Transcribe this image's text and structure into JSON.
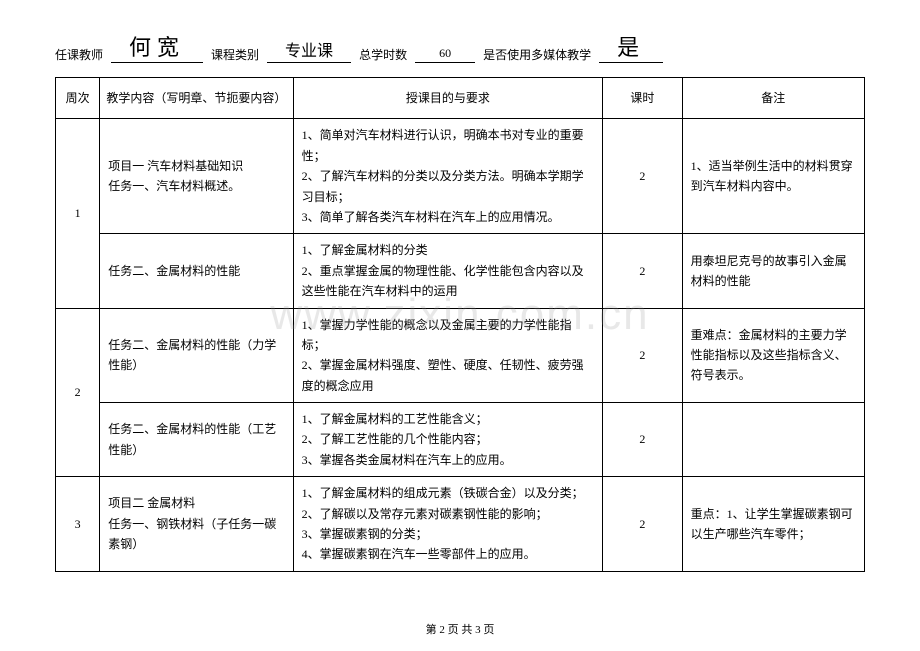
{
  "header": {
    "labels": {
      "teacher": "任课教师",
      "courseType": "课程类别",
      "totalHours": "总学时数",
      "multimedia": "是否使用多媒体教学"
    },
    "values": {
      "teacher": "何宽",
      "courseType": "专业课",
      "totalHours": "60",
      "multimedia": "是"
    }
  },
  "columns": {
    "week": "周次",
    "content": "教学内容（写明章、节扼要内容）",
    "goal": "授课目的与要求",
    "hours": "课时",
    "note": "备注"
  },
  "rows": [
    {
      "week": "1",
      "sub": [
        {
          "content": "项目一 汽车材料基础知识\n任务一、汽车材料概述。",
          "goal": "1、简单对汽车材料进行认识，明确本书对专业的重要性；\n2、了解汽车材料的分类以及分类方法。明确本学期学习目标；\n3、简单了解各类汽车材料在汽车上的应用情况。",
          "hours": "2",
          "note": "1、适当举例生活中的材料贯穿到汽车材料内容中。"
        },
        {
          "content": "任务二、金属材料的性能",
          "goal": "1、了解金属材料的分类\n2、重点掌握金属的物理性能、化学性能包含内容以及这些性能在汽车材料中的运用",
          "hours": "2",
          "note": "用泰坦尼克号的故事引入金属材料的性能"
        }
      ]
    },
    {
      "week": "2",
      "sub": [
        {
          "content": "任务二、金属材料的性能（力学性能）",
          "goal": "1、掌握力学性能的概念以及金属主要的力学性能指标；\n2、掌握金属材料强度、塑性、硬度、任韧性、疲劳强度的概念应用",
          "hours": "2",
          "note": "重难点：金属材料的主要力学性能指标以及这些指标含义、符号表示。"
        },
        {
          "content": "任务二、金属材料的性能（工艺性能）",
          "goal": "1、了解金属材料的工艺性能含义；\n2、了解工艺性能的几个性能内容；\n3、掌握各类金属材料在汽车上的应用。",
          "hours": "2",
          "note": ""
        }
      ]
    },
    {
      "week": "3",
      "sub": [
        {
          "content": "项目二  金属材料\n任务一、钢铁材料（子任务一碳素钢）",
          "goal": "1、了解金属材料的组成元素（铁碳合金）以及分类；\n2、了解碳以及常存元素对碳素钢性能的影响；\n3、掌握碳素钢的分类；\n4、掌握碳素钢在汽车一些零部件上的应用。",
          "hours": "2",
          "note": "重点：1、让学生掌握碳素钢可以生产哪些汽车零件；"
        }
      ]
    }
  ],
  "watermark": "www.zixin.com.cn",
  "footer": "第 2 页 共 3 页"
}
